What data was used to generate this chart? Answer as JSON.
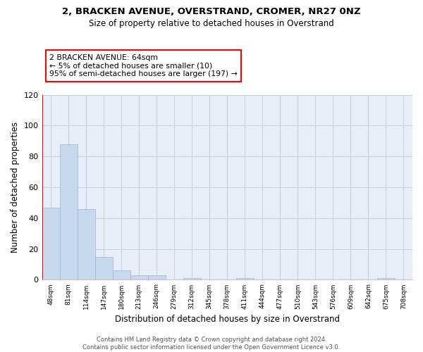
{
  "title": "2, BRACKEN AVENUE, OVERSTRAND, CROMER, NR27 0NZ",
  "subtitle": "Size of property relative to detached houses in Overstrand",
  "bar_labels": [
    "48sqm",
    "81sqm",
    "114sqm",
    "147sqm",
    "180sqm",
    "213sqm",
    "246sqm",
    "279sqm",
    "312sqm",
    "345sqm",
    "378sqm",
    "411sqm",
    "444sqm",
    "477sqm",
    "510sqm",
    "543sqm",
    "576sqm",
    "609sqm",
    "642sqm",
    "675sqm",
    "708sqm"
  ],
  "bar_heights": [
    47,
    88,
    46,
    15,
    6,
    3,
    3,
    0,
    1,
    0,
    0,
    1,
    0,
    0,
    0,
    0,
    0,
    0,
    0,
    1,
    0
  ],
  "bar_color": "#c8d9ee",
  "bar_edge_color": "#9ab5d5",
  "annotation_box_text": "2 BRACKEN AVENUE: 64sqm\n← 5% of detached houses are smaller (10)\n95% of semi-detached houses are larger (197) →",
  "ylabel": "Number of detached properties",
  "xlabel": "Distribution of detached houses by size in Overstrand",
  "ylim": [
    0,
    120
  ],
  "yticks": [
    0,
    20,
    40,
    60,
    80,
    100,
    120
  ],
  "footnote": "Contains HM Land Registry data © Crown copyright and database right 2024.\nContains public sector information licensed under the Open Government Licence v3.0.",
  "vertical_line_x": -0.5,
  "bg_color": "#ffffff",
  "plot_bg_color": "#e8eef8",
  "grid_color": "#c8d0e0"
}
